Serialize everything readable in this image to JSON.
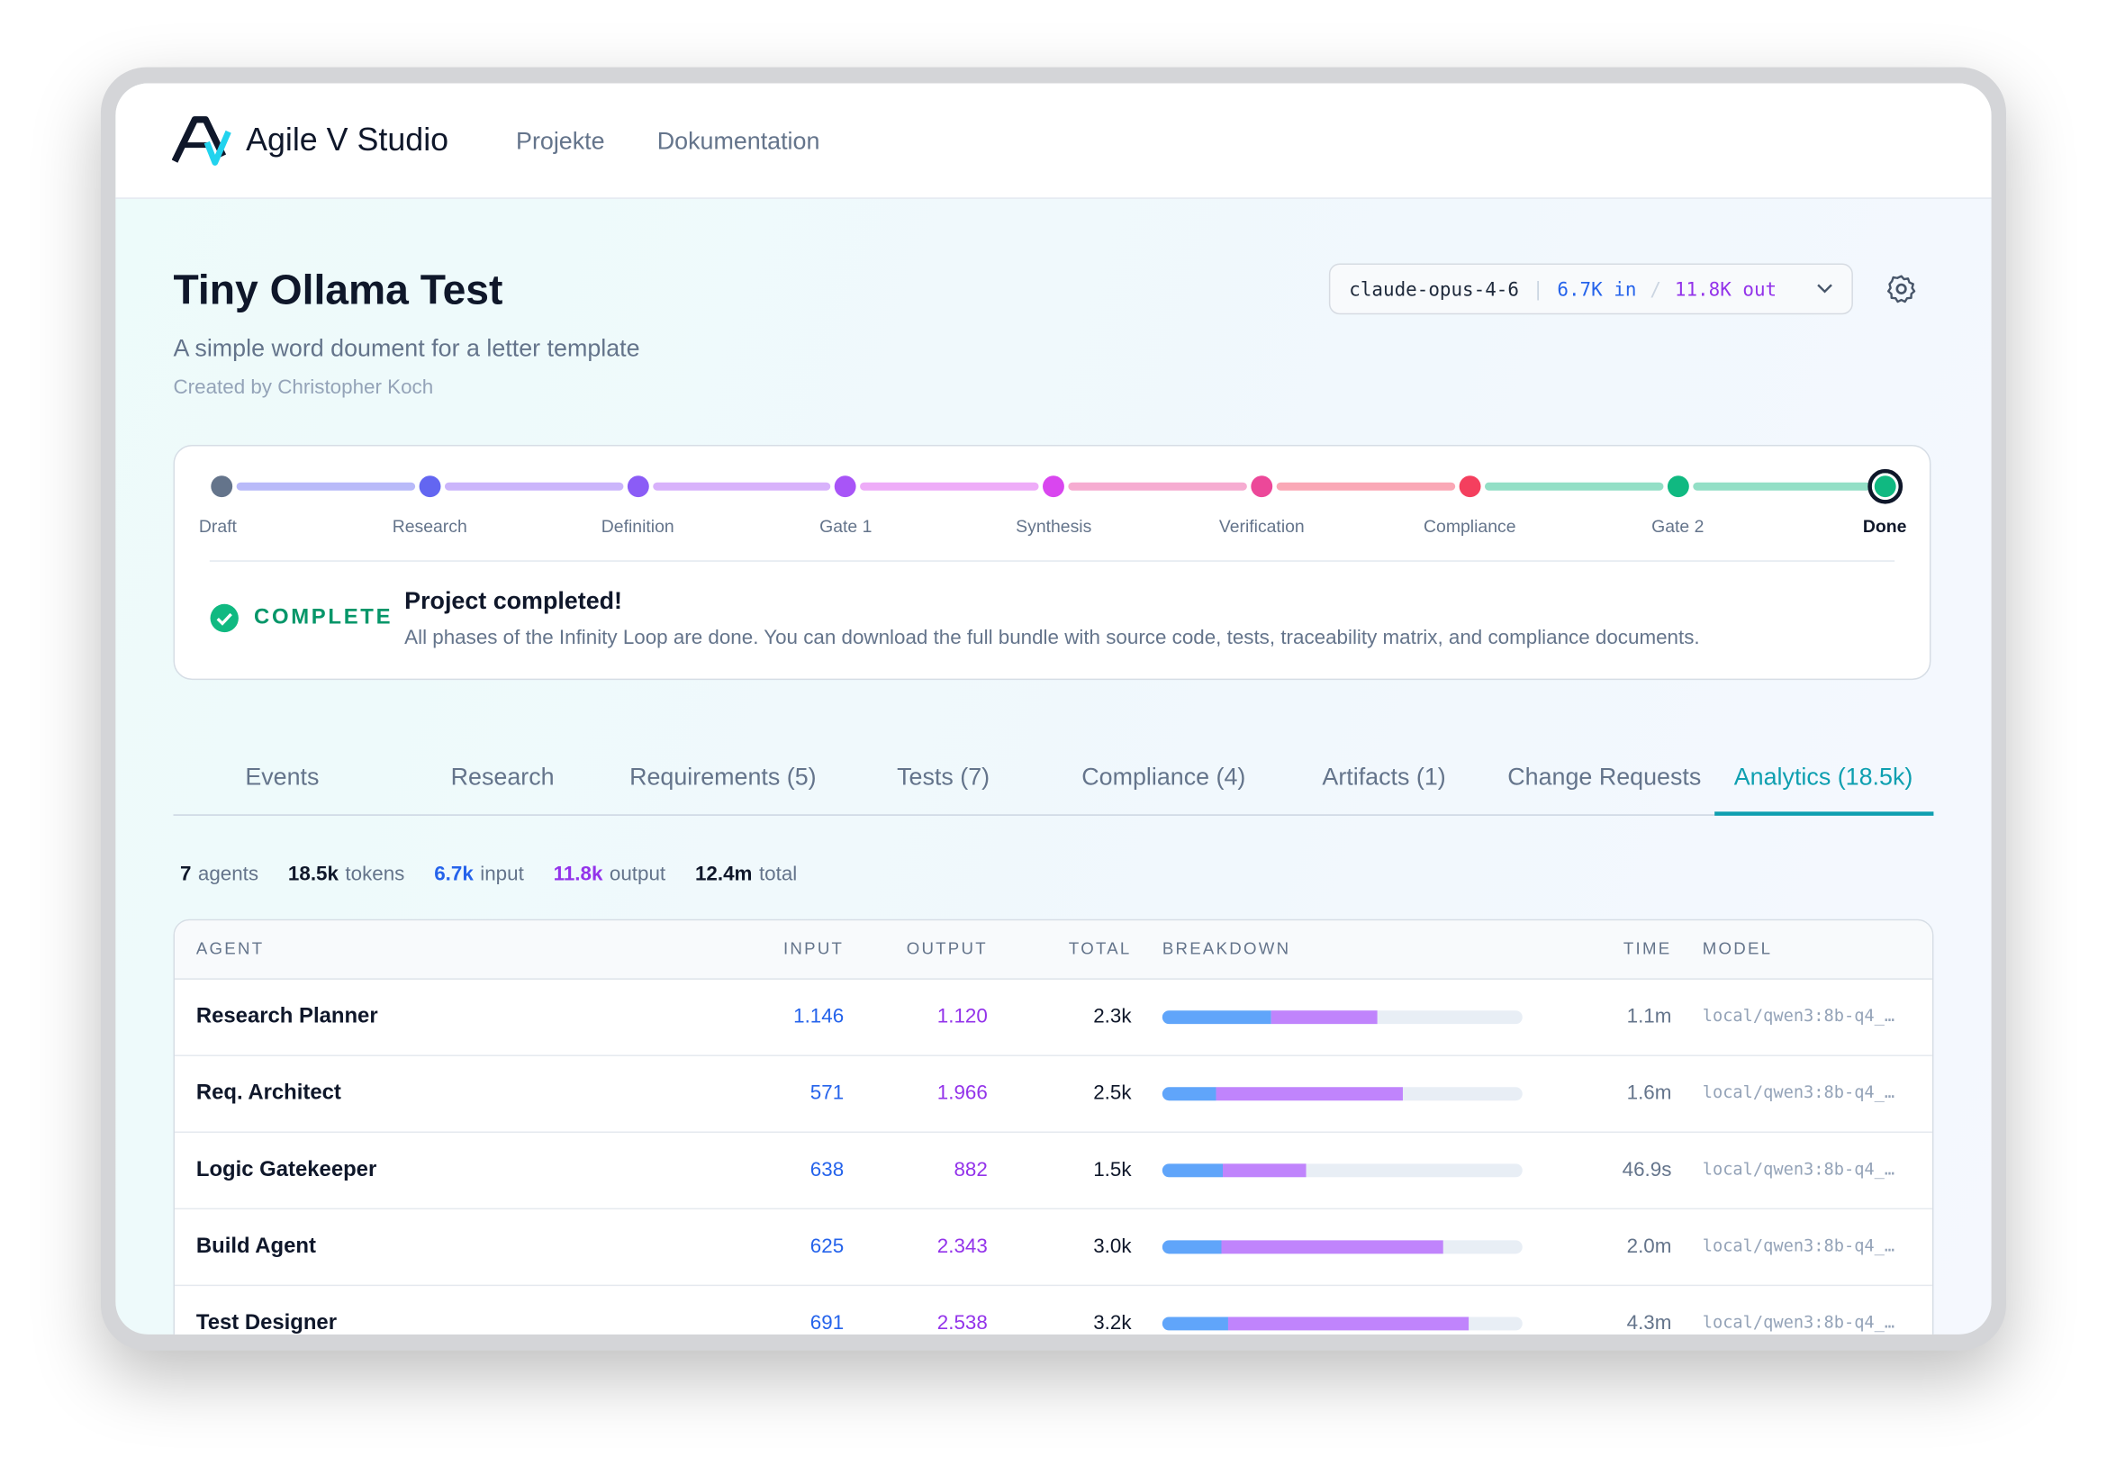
{
  "header": {
    "brand": "Agile V Studio",
    "nav": [
      "Projekte",
      "Dokumentation"
    ]
  },
  "project": {
    "title": "Tiny Ollama Test",
    "subtitle": "A simple word doument for a letter template",
    "created_by": "Created by Christopher Koch",
    "model_pill": {
      "model": "claude-opus-4-6",
      "input": "6.7K in",
      "output": "11.8K out"
    }
  },
  "pipeline": {
    "stages": [
      {
        "name": "Draft",
        "color": "#64748b"
      },
      {
        "name": "Research",
        "color": "#6366f1"
      },
      {
        "name": "Definition",
        "color": "#8b5cf6"
      },
      {
        "name": "Gate 1",
        "color": "#a855f7"
      },
      {
        "name": "Synthesis",
        "color": "#d946ef"
      },
      {
        "name": "Verification",
        "color": "#ec4899"
      },
      {
        "name": "Compliance",
        "color": "#f43f5e"
      },
      {
        "name": "Gate 2",
        "color": "#10b981"
      },
      {
        "name": "Done",
        "color": "#10b981"
      }
    ],
    "status": "COMPLETE",
    "message_title": "Project completed!",
    "message": "All phases of the Infinity Loop are done. You can download the full bundle with source code, tests, traceability matrix, and compliance documents."
  },
  "tabs": {
    "items": [
      "Events",
      "Research",
      "Requirements (5)",
      "Tests (7)",
      "Compliance (4)",
      "Artifacts (1)",
      "Change Requests",
      "Analytics (18.5k)"
    ],
    "active": "Analytics (18.5k)"
  },
  "stats": [
    {
      "value": "7",
      "label": "agents"
    },
    {
      "value": "18.5k",
      "label": "tokens"
    },
    {
      "value": "6.7k",
      "label": "input"
    },
    {
      "value": "11.8k",
      "label": "output"
    },
    {
      "value": "12.4m",
      "label": "total"
    }
  ],
  "table": {
    "columns": [
      "AGENT",
      "INPUT",
      "OUTPUT",
      "TOTAL",
      "BREAKDOWN",
      "TIME",
      "MODEL"
    ],
    "rows": [
      {
        "agent": "Research Planner",
        "input": "1.146",
        "output": "1.120",
        "total": "2.3k",
        "time": "1.1m",
        "model": "local/qwen3:8b-q4_…"
      },
      {
        "agent": "Req. Architect",
        "input": "571",
        "output": "1.966",
        "total": "2.5k",
        "time": "1.6m",
        "model": "local/qwen3:8b-q4_…"
      },
      {
        "agent": "Logic Gatekeeper",
        "input": "638",
        "output": "882",
        "total": "1.5k",
        "time": "46.9s",
        "model": "local/qwen3:8b-q4_…"
      },
      {
        "agent": "Build Agent",
        "input": "625",
        "output": "2.343",
        "total": "3.0k",
        "time": "2.0m",
        "model": "local/qwen3:8b-q4_…"
      },
      {
        "agent": "Test Designer",
        "input": "691",
        "output": "2.538",
        "total": "3.2k",
        "time": "4.3m",
        "model": "local/qwen3:8b-q4_…"
      }
    ]
  }
}
